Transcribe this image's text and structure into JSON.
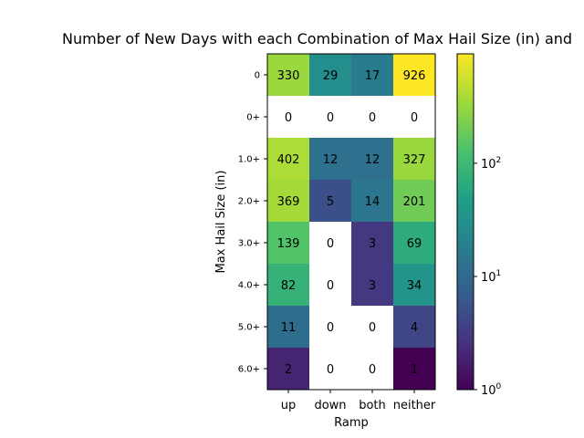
{
  "chart_data": {
    "type": "heatmap",
    "title": "Number of New Days with each Combination of Max Hail Size (in) and",
    "xlabel": "Ramp",
    "ylabel": "Max Hail Size (in)",
    "x_categories": [
      "up",
      "down",
      "both",
      "neither"
    ],
    "y_categories": [
      "0",
      "0+",
      "1.0+",
      "2.0+",
      "3.0+",
      "4.0+",
      "5.0+",
      "6.0+"
    ],
    "values": [
      [
        330,
        29,
        17,
        926
      ],
      [
        0,
        0,
        0,
        0
      ],
      [
        402,
        12,
        12,
        327
      ],
      [
        369,
        5,
        14,
        201
      ],
      [
        139,
        0,
        3,
        69
      ],
      [
        82,
        0,
        3,
        34
      ],
      [
        11,
        0,
        0,
        4
      ],
      [
        2,
        0,
        0,
        1
      ]
    ],
    "colormap": "viridis",
    "color_scale": "log",
    "color_range": [
      1,
      926
    ],
    "zero_color": "#ffffff",
    "colorbar": {
      "ticks": [
        {
          "base": "10",
          "exp": "0"
        },
        {
          "base": "10",
          "exp": "1"
        },
        {
          "base": "10",
          "exp": "2"
        }
      ]
    }
  }
}
